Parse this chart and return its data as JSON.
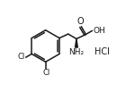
{
  "bg_color": "#ffffff",
  "line_color": "#1a1a1a",
  "text_color": "#1a1a1a",
  "figsize": [
    1.5,
    1.03
  ],
  "dpi": 100,
  "cl1_label": "Cl",
  "cl2_label": "Cl",
  "oh_label": "OH",
  "o_label": "O",
  "nh2_label": "NH₂",
  "hcl_label": "HCl"
}
